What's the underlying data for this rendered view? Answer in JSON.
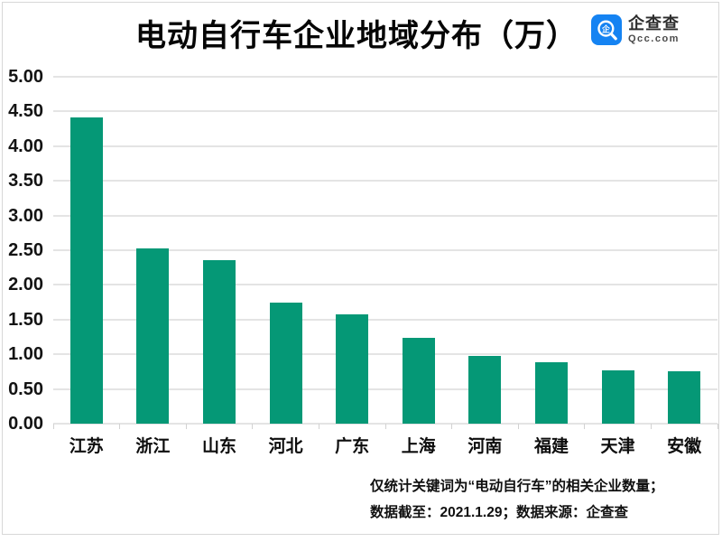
{
  "logo": {
    "brand": "企查查",
    "domain": "Qcc.com",
    "brand_color": "#1583f2",
    "icon": "qcc-magnifier-icon"
  },
  "chart_data": {
    "type": "bar",
    "title": "电动自行车企业地域分布（万）",
    "categories": [
      "江苏",
      "浙江",
      "山东",
      "河北",
      "广东",
      "上海",
      "河南",
      "福建",
      "天津",
      "安徽"
    ],
    "values": [
      4.42,
      2.52,
      2.36,
      1.74,
      1.58,
      1.24,
      0.98,
      0.88,
      0.77,
      0.76
    ],
    "xlabel": "",
    "ylabel": "",
    "ylim": [
      0,
      5
    ],
    "ytick_step": 0.5,
    "ytick_labels": [
      "0.00",
      "0.50",
      "1.00",
      "1.50",
      "2.00",
      "2.50",
      "3.00",
      "3.50",
      "4.00",
      "4.50",
      "5.00"
    ],
    "bar_color": "#059876",
    "gridline_color": "#e4e4e4",
    "grid": true,
    "legend_position": "none"
  },
  "footnote": {
    "line1": "仅统计关键词为“电动自行车”的相关企业数量；",
    "line2": "数据截至：2021.1.29；数据来源：企查查"
  }
}
